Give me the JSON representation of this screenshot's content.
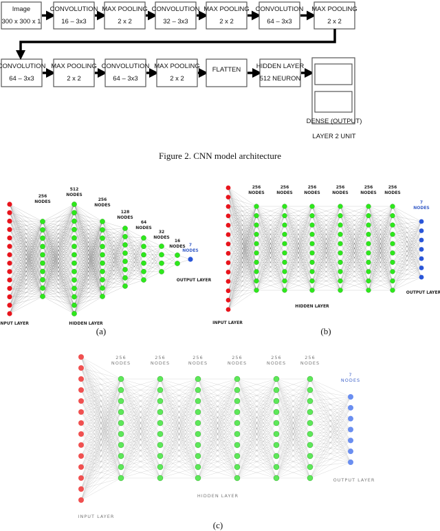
{
  "figure2": {
    "row1": [
      {
        "title": "Image",
        "sub": "300 x 300 x 1"
      },
      {
        "title": "CONVOLUTION",
        "sub": "16 – 3x3"
      },
      {
        "title": "MAX POOLING",
        "sub": "2 x 2"
      },
      {
        "title": "CONVOLUTION",
        "sub": "32 – 3x3"
      },
      {
        "title": "MAX POOLING",
        "sub": "2 x 2"
      },
      {
        "title": "CONVOLUTION",
        "sub": "64 – 3x3"
      },
      {
        "title": "MAX POOLING",
        "sub": "2 x 2"
      }
    ],
    "row2": [
      {
        "title": "CONVOLUTION",
        "sub": "64 – 3x3"
      },
      {
        "title": "MAX POOLING",
        "sub": "2 x 2"
      },
      {
        "title": "CONVOLUTION",
        "sub": "64 – 3x3"
      },
      {
        "title": "MAX POOLING",
        "sub": "2 x 2"
      },
      {
        "title": "FLATTEN",
        "sub": ""
      },
      {
        "title": "HIDDEN LAYER",
        "sub": "512 NEURON"
      }
    ],
    "dense_label_1": "DENSE (OUTPUT)",
    "dense_label_2": "LAYER  2 UNIT",
    "caption": "Figure 2. CNN model architecture"
  },
  "colors": {
    "input": "#e8141c",
    "hidden": "#2ee81c",
    "output": "#2a56d8",
    "input_c": "#f05050",
    "hidden_c": "#5ee85a",
    "output_c": "#6a8ef0",
    "output_label": "#3a5fc8"
  },
  "panels": [
    {
      "id": "a",
      "caption": "(a)",
      "input_label": "INPUT LAYER",
      "hidden_label": "HIDDEN LAYER",
      "output_label": "OUTPUT LAYER",
      "layers": [
        {
          "label_top": "",
          "label_bottom": "",
          "drawn_nodes": 14,
          "kind": "input"
        },
        {
          "label_top": "256",
          "label_bottom": "NODES",
          "drawn_nodes": 10,
          "kind": "hidden"
        },
        {
          "label_top": "512",
          "label_bottom": "NODES",
          "drawn_nodes": 14,
          "kind": "hidden"
        },
        {
          "label_top": "256",
          "label_bottom": "NODES",
          "drawn_nodes": 10,
          "kind": "hidden"
        },
        {
          "label_top": "128",
          "label_bottom": "NODES",
          "drawn_nodes": 8,
          "kind": "hidden"
        },
        {
          "label_top": "64",
          "label_bottom": "NODES",
          "drawn_nodes": 6,
          "kind": "hidden"
        },
        {
          "label_top": "32",
          "label_bottom": "NODES",
          "drawn_nodes": 4,
          "kind": "hidden"
        },
        {
          "label_top": "16",
          "label_bottom": "NODES",
          "drawn_nodes": 2,
          "kind": "hidden"
        },
        {
          "label_top": "7",
          "label_bottom": "NODES",
          "drawn_nodes": 1,
          "kind": "output"
        }
      ]
    },
    {
      "id": "b",
      "caption": "(b)",
      "input_label": "INPUT LAYER",
      "hidden_label": "HIDDEN LAYER",
      "output_label": "OUTPUT LAYER",
      "layers": [
        {
          "label_top": "",
          "label_bottom": "",
          "drawn_nodes": 14,
          "kind": "input"
        },
        {
          "label_top": "256",
          "label_bottom": "NODES",
          "drawn_nodes": 10,
          "kind": "hidden"
        },
        {
          "label_top": "256",
          "label_bottom": "NODES",
          "drawn_nodes": 10,
          "kind": "hidden"
        },
        {
          "label_top": "256",
          "label_bottom": "NODES",
          "drawn_nodes": 10,
          "kind": "hidden"
        },
        {
          "label_top": "256",
          "label_bottom": "NODES",
          "drawn_nodes": 10,
          "kind": "hidden"
        },
        {
          "label_top": "256",
          "label_bottom": "NODES",
          "drawn_nodes": 10,
          "kind": "hidden"
        },
        {
          "label_top": "256",
          "label_bottom": "NODES",
          "drawn_nodes": 10,
          "kind": "hidden"
        },
        {
          "label_top": "7",
          "label_bottom": "NODES",
          "drawn_nodes": 7,
          "kind": "output"
        }
      ]
    },
    {
      "id": "c",
      "caption": "(c)",
      "input_label": "INPUT LAYER",
      "hidden_label": "HIDDEN LAYER",
      "output_label": "OUTPUT LAYER",
      "layers": [
        {
          "label_top": "",
          "label_bottom": "",
          "drawn_nodes": 14,
          "kind": "input"
        },
        {
          "label_top": "256",
          "label_bottom": "NODES",
          "drawn_nodes": 10,
          "kind": "hidden"
        },
        {
          "label_top": "256",
          "label_bottom": "NODES",
          "drawn_nodes": 10,
          "kind": "hidden"
        },
        {
          "label_top": "256",
          "label_bottom": "NODES",
          "drawn_nodes": 10,
          "kind": "hidden"
        },
        {
          "label_top": "256",
          "label_bottom": "NODES",
          "drawn_nodes": 10,
          "kind": "hidden"
        },
        {
          "label_top": "256",
          "label_bottom": "NODES",
          "drawn_nodes": 10,
          "kind": "hidden"
        },
        {
          "label_top": "256",
          "label_bottom": "NODES",
          "drawn_nodes": 10,
          "kind": "hidden"
        },
        {
          "label_top": "7",
          "label_bottom": "NODES",
          "drawn_nodes": 7,
          "kind": "output"
        }
      ]
    }
  ]
}
